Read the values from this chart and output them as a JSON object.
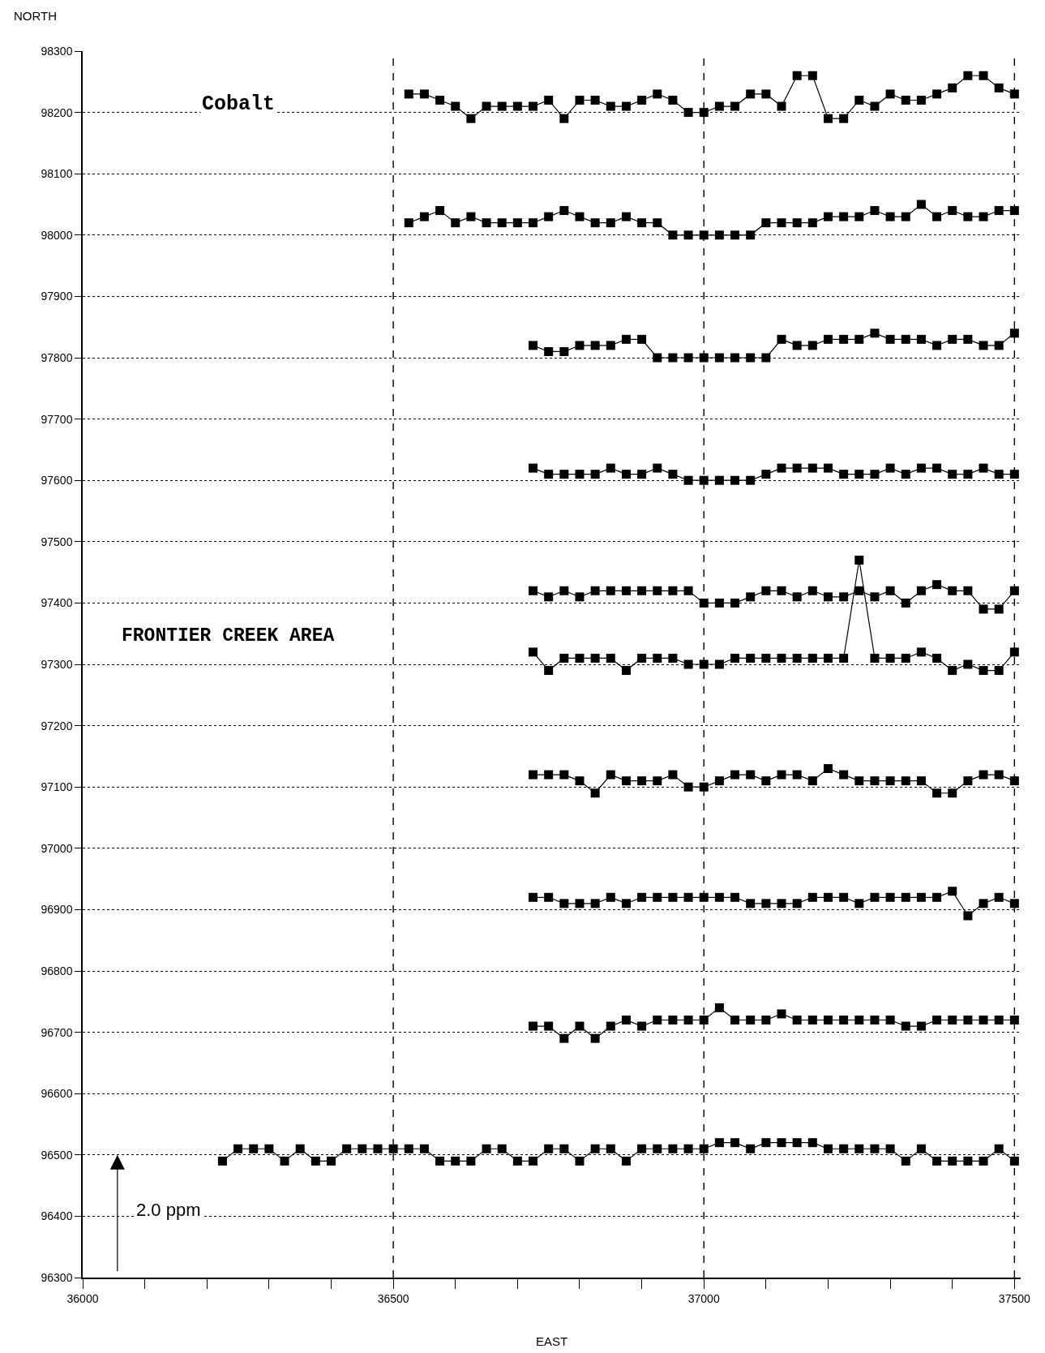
{
  "chart_data": {
    "type": "line",
    "xlabel": "EAST",
    "ylabel": "NORTH",
    "annotations": [
      "Cobalt",
      "FRONTIER CREEK AREA",
      "2.0 ppm"
    ],
    "xlim": [
      36000,
      37510
    ],
    "ylim": [
      96300,
      98300
    ],
    "xticks": [
      36000,
      {
        "value": 36100,
        "label": null
      },
      {
        "value": 36200,
        "label": null
      },
      {
        "value": 36300,
        "label": null
      },
      {
        "value": 36400,
        "label": null
      },
      36500,
      {
        "value": 36600,
        "label": null
      },
      {
        "value": 36700,
        "label": null
      },
      {
        "value": 36800,
        "label": null
      },
      {
        "value": 36900,
        "label": null
      },
      37000,
      {
        "value": 37100,
        "label": null
      },
      {
        "value": 37200,
        "label": null
      },
      {
        "value": 37300,
        "label": null
      },
      {
        "value": 37400,
        "label": null
      },
      37500
    ],
    "yticks": [
      96300,
      96400,
      96500,
      96600,
      96700,
      96800,
      96900,
      97000,
      97100,
      97200,
      97300,
      97400,
      97500,
      97600,
      97700,
      97800,
      97900,
      98000,
      98100,
      98200,
      98300
    ],
    "grid": "y",
    "marker": "square",
    "line_style": "solid",
    "ref_lines": [
      {
        "axis": "x",
        "value": 36500,
        "color": "#000000",
        "line_style": "dashed"
      },
      {
        "axis": "x",
        "value": 37000,
        "color": "#000000",
        "line_style": "dashed"
      },
      {
        "axis": "x",
        "value": 37500,
        "color": "#000000",
        "line_style": "dashed"
      }
    ],
    "series": [
      {
        "color": "#000000",
        "x": [
          36525,
          36550,
          36575,
          36600,
          36625,
          36650,
          36675,
          36700,
          36725,
          36750,
          36775,
          36800,
          36825,
          36850,
          36875,
          36900,
          36925,
          36950,
          36975,
          37000,
          37025,
          37050,
          37075,
          37100,
          37125,
          37150,
          37175,
          37200,
          37225,
          37250,
          37275,
          37300,
          37325,
          37350,
          37375,
          37400,
          37425,
          37450,
          37475,
          37500
        ],
        "values": [
          98230,
          98230,
          98220,
          98210,
          98190,
          98210,
          98210,
          98210,
          98210,
          98220,
          98190,
          98220,
          98220,
          98210,
          98210,
          98220,
          98230,
          98220,
          98200,
          98200,
          98210,
          98210,
          98230,
          98230,
          98210,
          98260,
          98260,
          98190,
          98190,
          98220,
          98210,
          98230,
          98220,
          98220,
          98230,
          98240,
          98260,
          98260,
          98240,
          98230
        ]
      },
      {
        "color": "#000000",
        "x": [
          36525,
          36550,
          36575,
          36600,
          36625,
          36650,
          36675,
          36700,
          36725,
          36750,
          36775,
          36800,
          36825,
          36850,
          36875,
          36900,
          36925,
          36950,
          36975,
          37000,
          37025,
          37050,
          37075,
          37100,
          37125,
          37150,
          37175,
          37200,
          37225,
          37250,
          37275,
          37300,
          37325,
          37350,
          37375,
          37400,
          37425,
          37450,
          37475,
          37500
        ],
        "values": [
          98020,
          98030,
          98040,
          98020,
          98030,
          98020,
          98020,
          98020,
          98020,
          98030,
          98040,
          98030,
          98020,
          98020,
          98030,
          98020,
          98020,
          98000,
          98000,
          98000,
          98000,
          98000,
          98000,
          98020,
          98020,
          98020,
          98020,
          98030,
          98030,
          98030,
          98040,
          98030,
          98030,
          98050,
          98030,
          98040,
          98030,
          98030,
          98040,
          98040
        ]
      },
      {
        "color": "#000000",
        "x": [
          36725,
          36750,
          36775,
          36800,
          36825,
          36850,
          36875,
          36900,
          36925,
          36950,
          36975,
          37000,
          37025,
          37050,
          37075,
          37100,
          37125,
          37150,
          37175,
          37200,
          37225,
          37250,
          37275,
          37300,
          37325,
          37350,
          37375,
          37400,
          37425,
          37450,
          37475,
          37500
        ],
        "values": [
          97820,
          97810,
          97810,
          97820,
          97820,
          97820,
          97830,
          97830,
          97800,
          97800,
          97800,
          97800,
          97800,
          97800,
          97800,
          97800,
          97830,
          97820,
          97820,
          97830,
          97830,
          97830,
          97840,
          97830,
          97830,
          97830,
          97820,
          97830,
          97830,
          97820,
          97820,
          97840
        ]
      },
      {
        "color": "#000000",
        "x": [
          36725,
          36750,
          36775,
          36800,
          36825,
          36850,
          36875,
          36900,
          36925,
          36950,
          36975,
          37000,
          37025,
          37050,
          37075,
          37100,
          37125,
          37150,
          37175,
          37200,
          37225,
          37250,
          37275,
          37300,
          37325,
          37350,
          37375,
          37400,
          37425,
          37450,
          37475,
          37500
        ],
        "values": [
          97620,
          97610,
          97610,
          97610,
          97610,
          97620,
          97610,
          97610,
          97620,
          97610,
          97600,
          97600,
          97600,
          97600,
          97600,
          97610,
          97620,
          97620,
          97620,
          97620,
          97610,
          97610,
          97610,
          97620,
          97610,
          97620,
          97620,
          97610,
          97610,
          97620,
          97610,
          97610
        ]
      },
      {
        "color": "#000000",
        "x": [
          36725,
          36750,
          36775,
          36800,
          36825,
          36850,
          36875,
          36900,
          36925,
          36950,
          36975,
          37000,
          37025,
          37050,
          37075,
          37100,
          37125,
          37150,
          37175,
          37200,
          37225,
          37250,
          37275,
          37300,
          37325,
          37350,
          37375,
          37400,
          37425,
          37450,
          37475,
          37500
        ],
        "values": [
          97420,
          97410,
          97420,
          97410,
          97420,
          97420,
          97420,
          97420,
          97420,
          97420,
          97420,
          97400,
          97400,
          97400,
          97410,
          97420,
          97420,
          97410,
          97420,
          97410,
          97410,
          97420,
          97410,
          97420,
          97400,
          97420,
          97430,
          97420,
          97420,
          97390,
          97390,
          97420
        ]
      },
      {
        "color": "#000000",
        "x": [
          36725,
          36750,
          36775,
          36800,
          36825,
          36850,
          36875,
          36900,
          36925,
          36950,
          36975,
          37000,
          37025,
          37050,
          37075,
          37100,
          37125,
          37150,
          37175,
          37200,
          37225,
          37250,
          37275,
          37300,
          37325,
          37350,
          37375,
          37400,
          37425,
          37450,
          37475,
          37500
        ],
        "values": [
          97320,
          97290,
          97310,
          97310,
          97310,
          97310,
          97290,
          97310,
          97310,
          97310,
          97300,
          97300,
          97300,
          97310,
          97310,
          97310,
          97310,
          97310,
          97310,
          97310,
          97310,
          97470,
          97310,
          97310,
          97310,
          97320,
          97310,
          97290,
          97300,
          97290,
          97290,
          97320
        ]
      },
      {
        "color": "#000000",
        "x": [
          36725,
          36750,
          36775,
          36800,
          36825,
          36850,
          36875,
          36900,
          36925,
          36950,
          36975,
          37000,
          37025,
          37050,
          37075,
          37100,
          37125,
          37150,
          37175,
          37200,
          37225,
          37250,
          37275,
          37300,
          37325,
          37350,
          37375,
          37400,
          37425,
          37450,
          37475,
          37500
        ],
        "values": [
          97120,
          97120,
          97120,
          97110,
          97090,
          97120,
          97110,
          97110,
          97110,
          97120,
          97100,
          97100,
          97110,
          97120,
          97120,
          97110,
          97120,
          97120,
          97110,
          97130,
          97120,
          97110,
          97110,
          97110,
          97110,
          97110,
          97090,
          97090,
          97110,
          97120,
          97120,
          97110
        ]
      },
      {
        "color": "#000000",
        "x": [
          36725,
          36750,
          36775,
          36800,
          36825,
          36850,
          36875,
          36900,
          36925,
          36950,
          36975,
          37000,
          37025,
          37050,
          37075,
          37100,
          37125,
          37150,
          37175,
          37200,
          37225,
          37250,
          37275,
          37300,
          37325,
          37350,
          37375,
          37400,
          37425,
          37450,
          37475,
          37500
        ],
        "values": [
          96920,
          96920,
          96910,
          96910,
          96910,
          96920,
          96910,
          96920,
          96920,
          96920,
          96920,
          96920,
          96920,
          96920,
          96910,
          96910,
          96910,
          96910,
          96920,
          96920,
          96920,
          96910,
          96920,
          96920,
          96920,
          96920,
          96920,
          96930,
          96890,
          96910,
          96920,
          96910
        ]
      },
      {
        "color": "#000000",
        "x": [
          36725,
          36750,
          36775,
          36800,
          36825,
          36850,
          36875,
          36900,
          36925,
          36950,
          36975,
          37000,
          37025,
          37050,
          37075,
          37100,
          37125,
          37150,
          37175,
          37200,
          37225,
          37250,
          37275,
          37300,
          37325,
          37350,
          37375,
          37400,
          37425,
          37450,
          37475,
          37500
        ],
        "values": [
          96710,
          96710,
          96690,
          96710,
          96690,
          96710,
          96720,
          96710,
          96720,
          96720,
          96720,
          96720,
          96740,
          96720,
          96720,
          96720,
          96730,
          96720,
          96720,
          96720,
          96720,
          96720,
          96720,
          96720,
          96710,
          96710,
          96720,
          96720,
          96720,
          96720,
          96720,
          96720
        ]
      },
      {
        "color": "#000000",
        "x": [
          36225,
          36250,
          36275,
          36300,
          36325,
          36350,
          36375,
          36400,
          36425,
          36450,
          36475,
          36500,
          36525,
          36550,
          36575,
          36600,
          36625,
          36650,
          36675,
          36700,
          36725,
          36750,
          36775,
          36800,
          36825,
          36850,
          36875,
          36900,
          36925,
          36950,
          36975,
          37000,
          37025,
          37050,
          37075,
          37100,
          37125,
          37150,
          37175,
          37200,
          37225,
          37250,
          37275,
          37300,
          37325,
          37350,
          37375,
          37400,
          37425,
          37450,
          37475,
          37500
        ],
        "values": [
          96490,
          96510,
          96510,
          96510,
          96490,
          96510,
          96490,
          96490,
          96510,
          96510,
          96510,
          96510,
          96510,
          96510,
          96490,
          96490,
          96490,
          96510,
          96510,
          96490,
          96490,
          96510,
          96510,
          96490,
          96510,
          96510,
          96490,
          96510,
          96510,
          96510,
          96510,
          96510,
          96520,
          96520,
          96510,
          96520,
          96520,
          96520,
          96520,
          96510,
          96510,
          96510,
          96510,
          96510,
          96490,
          96510,
          96490,
          96490,
          96490,
          96490,
          96510,
          96490
        ]
      }
    ]
  }
}
